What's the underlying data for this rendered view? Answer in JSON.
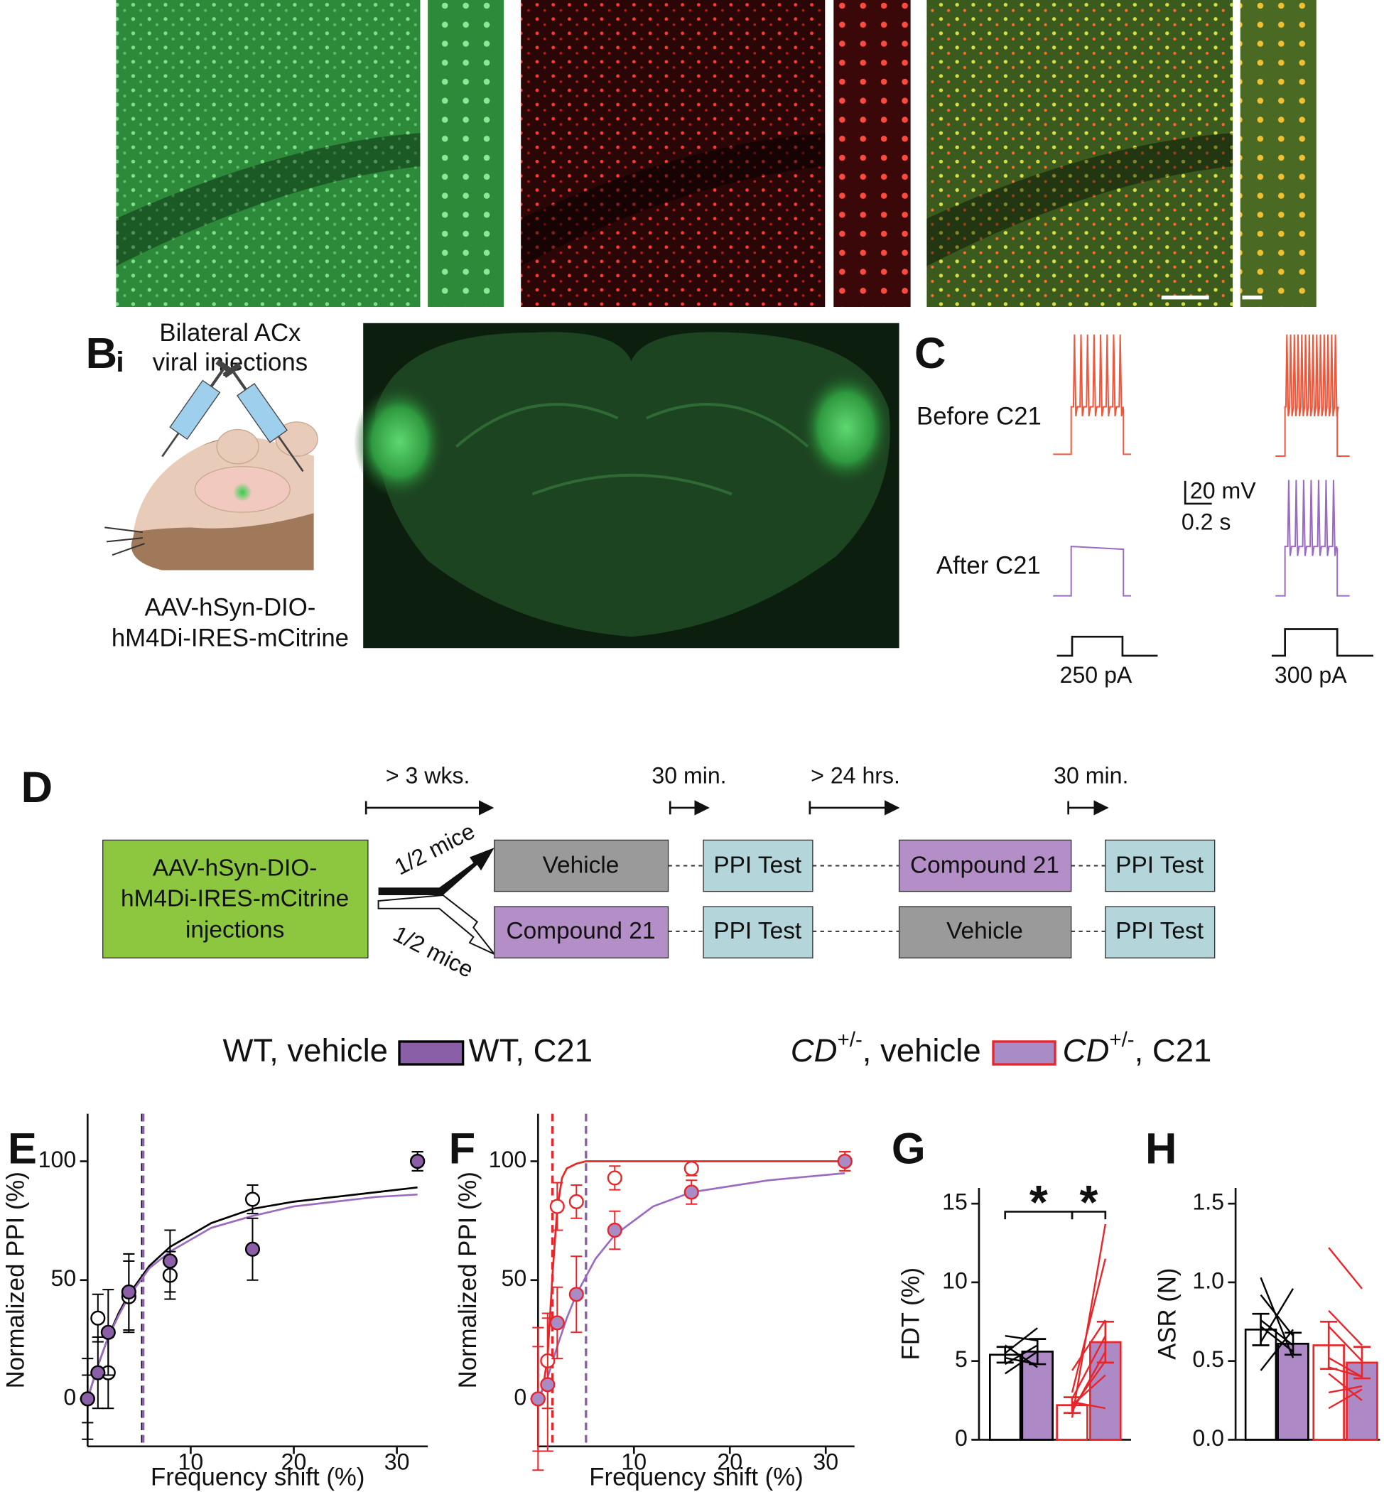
{
  "panel_B": {
    "label": "B",
    "sublabel": "i",
    "injection": [
      "Bilateral ACx",
      "viral injections"
    ],
    "construct": [
      "AAV-hSyn-DIO-",
      "hM4Di-IRES-mCitrine"
    ]
  },
  "panel_C": {
    "label": "C",
    "conditions": [
      "Before C21",
      "After C21"
    ],
    "scale_bar": [
      "20 mV",
      "0.2 s"
    ],
    "currents": [
      "250 pA",
      "300 pA"
    ]
  },
  "panel_D": {
    "label": "D",
    "intervals": [
      "> 3 wks.",
      "30 min.",
      "> 24 hrs.",
      "30 min."
    ],
    "injection": [
      "AAV-hSyn-DIO-",
      "hM4Di-IRES-mCitrine",
      "injections"
    ],
    "split": [
      "1/2 mice",
      "1/2 mice"
    ],
    "sequence": [
      [
        "Vehicle",
        "PPI Test",
        "Compound 21",
        "PPI Test"
      ],
      [
        "Compound 21",
        "PPI Test",
        "Vehicle",
        "PPI Test"
      ]
    ]
  },
  "chart_data": [
    {
      "type": "scatter",
      "panel": "E",
      "ylabel": "Normalized PPI (%)",
      "xlabel": "Frequency shift (%)",
      "xlim": [
        0,
        33
      ],
      "ylim": [
        -20,
        120
      ],
      "xticks": [
        10,
        20,
        30
      ],
      "yticks": [
        0,
        50,
        100
      ],
      "x": [
        0,
        1,
        2,
        4,
        8,
        16,
        32
      ],
      "series": [
        {
          "name": "WT, vehicle",
          "color": "#000000",
          "fill": "#ffffff",
          "values": [
            0,
            34,
            11,
            43,
            52,
            84,
            100
          ],
          "errors": [
            10,
            10,
            15,
            15,
            10,
            6,
            4
          ]
        },
        {
          "name": "WT, C21",
          "color": "#000000",
          "fill": "#8b5ea8",
          "values": [
            0,
            11,
            28,
            45,
            58,
            63,
            100
          ],
          "errors": [
            17,
            15,
            18,
            16,
            13,
            13,
            4
          ]
        }
      ],
      "fits": [
        {
          "color": "#000000",
          "x": [
            0,
            1,
            2,
            3,
            4,
            6,
            8,
            12,
            16,
            20,
            24,
            28,
            32
          ],
          "values": [
            0,
            14,
            26,
            36,
            44,
            56,
            64,
            74,
            80,
            83,
            85,
            87,
            89
          ]
        },
        {
          "color": "#9b6bc0",
          "x": [
            0,
            1,
            2,
            3,
            4,
            6,
            8,
            12,
            16,
            20,
            24,
            28,
            32
          ],
          "values": [
            0,
            14,
            26,
            35,
            43,
            55,
            62,
            72,
            77,
            81,
            83,
            85,
            86
          ]
        }
      ],
      "thresholds": [
        {
          "value": 5.3,
          "color": "#000000"
        },
        {
          "value": 5.4,
          "color": "#8b5ea8"
        }
      ]
    },
    {
      "type": "scatter",
      "panel": "F",
      "ylabel": "Normalized PPI (%)",
      "xlabel": "Frequency shift (%)",
      "xlim": [
        0,
        33
      ],
      "ylim": [
        -20,
        120
      ],
      "xticks": [
        10,
        20,
        30
      ],
      "yticks": [
        0,
        50,
        100
      ],
      "x": [
        0,
        1,
        2,
        4,
        8,
        16,
        32
      ],
      "series": [
        {
          "name": "CD+/-, vehicle",
          "color": "#e8262a",
          "fill": "#ffffff",
          "values": [
            0,
            16,
            81,
            83,
            93,
            97,
            100
          ],
          "errors": [
            30,
            20,
            10,
            7,
            5,
            3,
            4
          ]
        },
        {
          "name": "CD+/-, C21",
          "color": "#e8262a",
          "fill": "#a98bc5",
          "values": [
            0,
            6,
            32,
            44,
            71,
            87,
            100
          ],
          "errors": [
            22,
            28,
            15,
            16,
            8,
            5,
            4
          ]
        }
      ],
      "fits": [
        {
          "color": "#e8262a",
          "x": [
            0,
            0.5,
            1,
            1.5,
            2,
            2.5,
            3,
            4,
            5,
            8,
            16,
            32
          ],
          "values": [
            0,
            4,
            18,
            52,
            80,
            93,
            97,
            99,
            100,
            100,
            100,
            100
          ]
        },
        {
          "color": "#9b6bc0",
          "x": [
            0,
            1,
            2,
            3,
            4,
            6,
            8,
            12,
            16,
            24,
            32
          ],
          "values": [
            0,
            9,
            22,
            34,
            44,
            59,
            69,
            81,
            87,
            92,
            95
          ]
        }
      ],
      "thresholds": [
        {
          "value": 1.5,
          "color": "#e8262a"
        },
        {
          "value": 5.0,
          "color": "#8b5ea8"
        }
      ]
    },
    {
      "type": "bar",
      "panel": "G",
      "ylabel": "FDT (%)",
      "ylim": [
        0,
        16
      ],
      "yticks": [
        0,
        5,
        10,
        15
      ],
      "values": [
        5.4,
        5.6,
        2.2,
        6.2
      ],
      "errors": [
        0.5,
        0.8,
        0.5,
        1.3
      ],
      "edges": [
        "#000000",
        "#000000",
        "#e8262a",
        "#e8262a"
      ],
      "fills": [
        "#ffffff",
        "#ad8ac6",
        "#ffffff",
        "#ad8ac6"
      ],
      "pairs": [
        {
          "before": [
            6.0,
            4.8,
            5.5,
            6.6,
            4.2,
            5.2
          ],
          "after": [
            4.6,
            6.0,
            7.1,
            6.3,
            5.6,
            4.8
          ]
        },
        {
          "before": [
            1.4,
            2.0,
            2.6,
            3.0,
            2.2,
            4.4,
            1.8,
            2.4
          ],
          "after": [
            13.7,
            5.0,
            6.6,
            11.5,
            4.1,
            7.6,
            5.6,
            2.0
          ]
        }
      ],
      "annotations": [
        "*",
        "*"
      ]
    },
    {
      "type": "bar",
      "panel": "H",
      "ylabel": "ASR (N)",
      "ylim": [
        0,
        1.6
      ],
      "yticks": [
        {
          "value": 0,
          "label": "0.0"
        },
        0.5,
        {
          "value": 1,
          "label": "1.0"
        },
        1.5
      ],
      "values": [
        0.7,
        0.61,
        0.6,
        0.49
      ],
      "errors": [
        0.1,
        0.07,
        0.15,
        0.1
      ],
      "edges": [
        "#000000",
        "#000000",
        "#e8262a",
        "#e8262a"
      ],
      "fills": [
        "#ffffff",
        "#ad8ac6",
        "#ffffff",
        "#ad8ac6"
      ],
      "pairs": [
        {
          "before": [
            1.03,
            0.92,
            0.62,
            0.72,
            0.44,
            0.76
          ],
          "after": [
            0.52,
            0.66,
            0.96,
            0.56,
            0.7,
            0.6
          ]
        },
        {
          "before": [
            1.22,
            0.82,
            0.72,
            0.52,
            0.3,
            0.42,
            0.46,
            0.2
          ],
          "after": [
            0.96,
            0.6,
            0.5,
            0.4,
            0.34,
            0.25,
            0.4,
            0.32
          ]
        }
      ]
    }
  ]
}
